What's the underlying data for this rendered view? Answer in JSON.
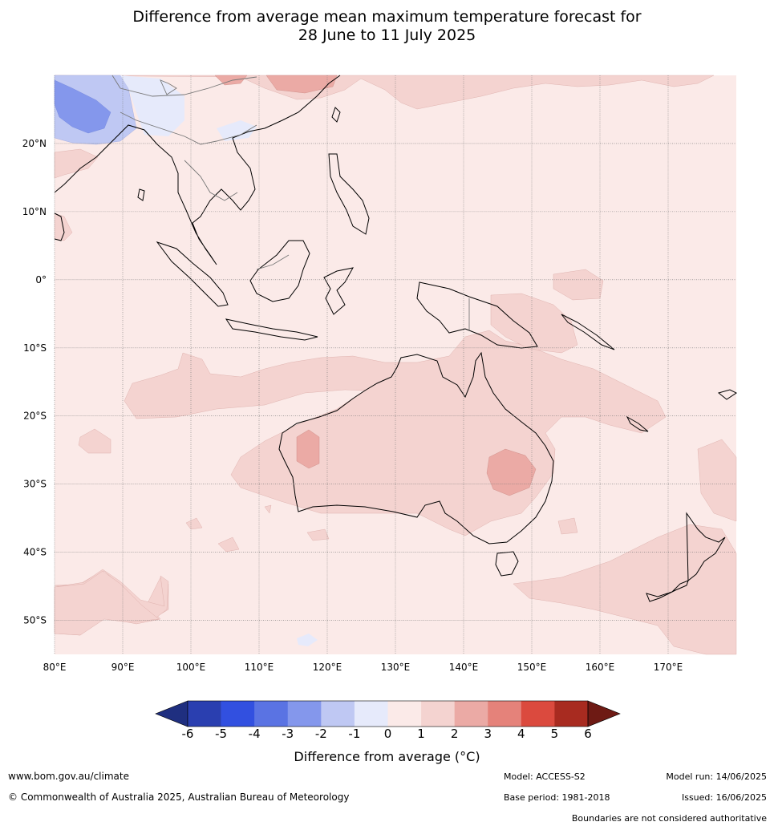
{
  "title": {
    "line1": "Difference from average mean maximum temperature forecast for",
    "line2": "28 June to 11 July 2025"
  },
  "map": {
    "lat_labels": [
      "20°N",
      "10°N",
      "0°",
      "10°S",
      "20°S",
      "30°S",
      "40°S",
      "50°S"
    ],
    "lon_labels": [
      "80°E",
      "90°E",
      "100°E",
      "110°E",
      "120°E",
      "130°E",
      "140°E",
      "150°E",
      "160°E",
      "170°E"
    ],
    "extent": {
      "lon": [
        80,
        180
      ],
      "lat": [
        -55,
        30
      ]
    }
  },
  "colorbar": {
    "title": "Difference from average (°C)",
    "ticks": [
      "-6",
      "-5",
      "-4",
      "-3",
      "-2",
      "-1",
      "0",
      "1",
      "2",
      "3",
      "4",
      "5",
      "6"
    ],
    "colors": [
      "#1f2f80",
      "#2a3fb0",
      "#3250e0",
      "#5a73e3",
      "#8497ec",
      "#bfc8f3",
      "#e6eafb",
      "#fbeae8",
      "#f4d3d0",
      "#ebaaa5",
      "#e5827a",
      "#db4a3e",
      "#a82b20",
      "#6e1a14"
    ]
  },
  "footer": {
    "website": "www.bom.gov.au/climate",
    "copyright": "© Commonwealth of Australia 2025, Australian Bureau of Meteorology",
    "model": "Model: ACCESS-S2",
    "base_period": "Base period: 1981-2018",
    "model_run": "Model run: 14/06/2025",
    "issued": "Issued: 16/06/2025",
    "disclaimer": "Boundaries are not considered authoritative"
  }
}
